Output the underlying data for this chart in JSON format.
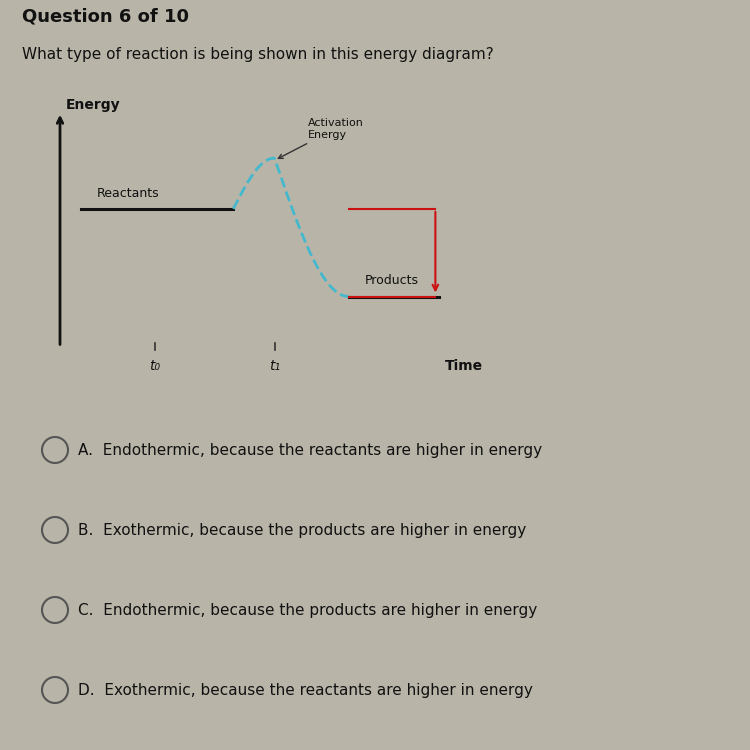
{
  "background_color": "#b8b4a8",
  "title_question": "Question 6 of 10",
  "subtitle": "What type of reaction is being shown in this energy diagram?",
  "ylabel": "Energy",
  "xlabel": "Time",
  "reactant_level": 0.6,
  "product_level": 0.22,
  "activation_peak": 0.82,
  "t0_label": "t₀",
  "t1_label": "t₁",
  "reactants_label": "Reactants",
  "products_label": "Products",
  "activation_label": "Activation\nEnergy",
  "choices": [
    "A.  Endothermic, because the reactants are higher in energy",
    "B.  Exothermic, because the products are higher in energy",
    "C.  Endothermic, because the products are higher in energy",
    "D.  Exothermic, because the reactants are higher in energy"
  ],
  "diagram_bg": "#b8b4a8",
  "reactant_color": "#111111",
  "product_color": "#111111",
  "dashed_color": "#44b8cc",
  "red_arrow_color": "#cc1111",
  "axis_color": "#111111",
  "font_size_title": 13,
  "font_size_subtitle": 11,
  "font_size_choices": 11,
  "font_size_labels": 9
}
